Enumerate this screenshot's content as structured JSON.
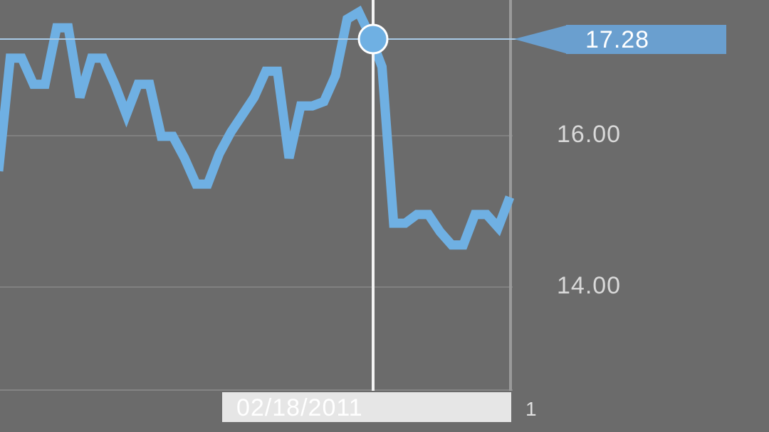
{
  "chart_data": {
    "type": "line",
    "series": [
      {
        "values": [
          15.45,
          16.75,
          16.75,
          16.45,
          16.45,
          17.1,
          17.1,
          16.3,
          16.75,
          16.75,
          16.45,
          16.1,
          16.45,
          16.45,
          15.85,
          15.85,
          15.6,
          15.3,
          15.3,
          15.65,
          15.9,
          16.1,
          16.3,
          16.6,
          16.6,
          15.6,
          16.2,
          16.2,
          16.25,
          16.55,
          17.2,
          17.28,
          17.0,
          16.65,
          14.85,
          14.85,
          14.95,
          14.95,
          14.75,
          14.6,
          14.6,
          14.95,
          14.95,
          14.8,
          15.15
        ]
      }
    ],
    "ylim": [
      12.92,
      17.42
    ],
    "y_ticks": [
      "16.00",
      "14.00"
    ],
    "grid": true,
    "crosshair": {
      "date": "02/18/2011",
      "value": "17.28"
    },
    "edge_label": "1",
    "colors": {
      "background": "#6b6b6b",
      "line": "#6fb0e3",
      "tag": "#6a9fcf",
      "grid": "#878787",
      "crosshair": "#ffffff",
      "date_box": "#e6e6e6"
    }
  }
}
